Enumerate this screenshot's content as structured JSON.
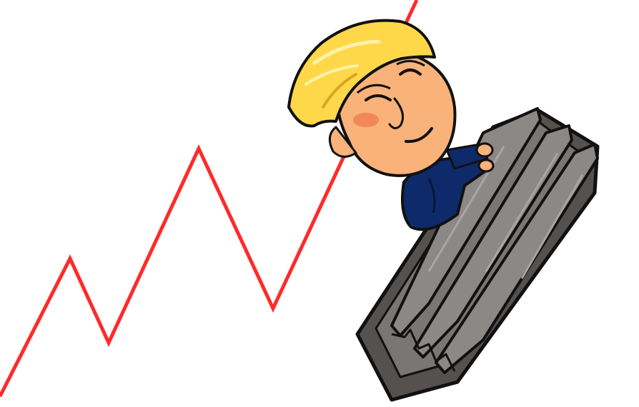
{
  "illustration": {
    "line_color": "#ff2a2a",
    "hair_color": "#ffd84a",
    "skin_color": "#f8b27a",
    "suit_color": "#0f2a6b",
    "steel_color": "#6e6a68",
    "outline_color": "#111111"
  }
}
